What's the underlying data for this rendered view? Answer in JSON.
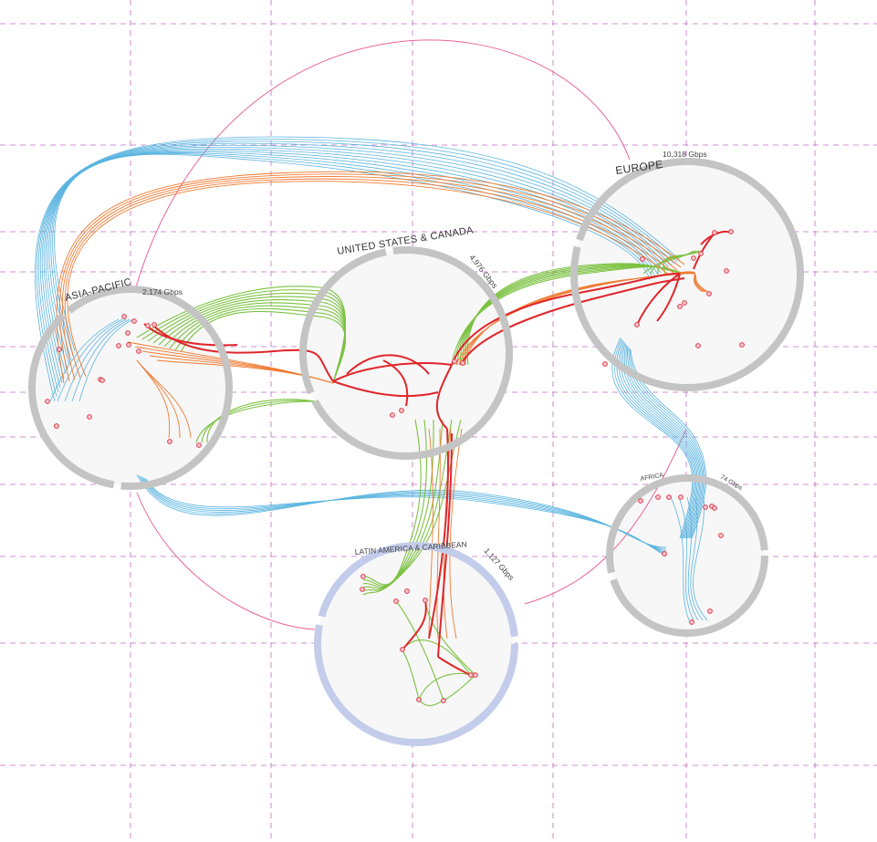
{
  "regions": {
    "asia_pacific": {
      "name": "ASIA-PACIFIC",
      "capacity": "2,174 Gbps"
    },
    "us_canada": {
      "name": "UNITED STATES & CANADA",
      "capacity": "4,976 Gbps"
    },
    "europe": {
      "name": "EUROPE",
      "capacity": "10,318 Gbps"
    },
    "africa": {
      "name": "AFRICA",
      "capacity": "74 Gbps"
    },
    "latin_america": {
      "name": "LATIN AMERICA & CARIBBEAN",
      "capacity": "1,127 Gbps"
    }
  },
  "colors": {
    "grid": "#c26bc6",
    "ring": "#c4c4c4",
    "ring_latam": "#c3ccea",
    "disc": "#f7f7f7",
    "blue": "#5ab4e0",
    "green": "#7cc242",
    "orange": "#f07a30",
    "red": "#e0262b",
    "pink": "#e8649a",
    "node": "#e03a4a"
  }
}
